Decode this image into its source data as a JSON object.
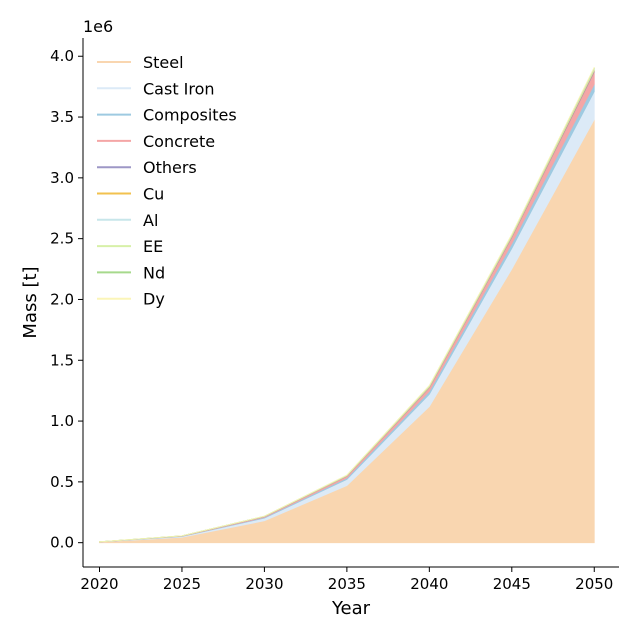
{
  "chart_data": {
    "type": "area",
    "stacked": true,
    "xlabel": "Year",
    "ylabel": "Mass [t]",
    "y_offset_label": "1e6",
    "x": [
      2020,
      2025,
      2030,
      2035,
      2040,
      2045,
      2050
    ],
    "xlim": [
      2019,
      2051.5
    ],
    "ylim": [
      -0.2,
      4.15
    ],
    "y_unit_multiplier": 1000000,
    "x_ticks": [
      2020,
      2025,
      2030,
      2035,
      2040,
      2045,
      2050
    ],
    "y_ticks": [
      0.0,
      0.5,
      1.0,
      1.5,
      2.0,
      2.5,
      3.0,
      3.5,
      4.0
    ],
    "y_tick_labels": [
      "0.0",
      "0.5",
      "1.0",
      "1.5",
      "2.0",
      "2.5",
      "3.0",
      "3.5",
      "4.0"
    ],
    "legend_position": "top-left",
    "grid": false,
    "series": [
      {
        "name": "Steel",
        "color": "#f9d6b0",
        "values": [
          0.005,
          0.045,
          0.18,
          0.47,
          1.12,
          2.25,
          3.48
        ]
      },
      {
        "name": "Cast Iron",
        "color": "#dceaf7",
        "values": [
          0.001,
          0.006,
          0.022,
          0.05,
          0.1,
          0.17,
          0.23
        ]
      },
      {
        "name": "Composites",
        "color": "#9ecae1",
        "values": [
          0.0005,
          0.002,
          0.006,
          0.013,
          0.025,
          0.04,
          0.06
        ]
      },
      {
        "name": "Concrete",
        "color": "#f4a6a6",
        "values": [
          0.0005,
          0.002,
          0.006,
          0.014,
          0.03,
          0.05,
          0.1
        ]
      },
      {
        "name": "Others",
        "color": "#9d97c6",
        "values": [
          0.0001,
          0.0005,
          0.001,
          0.002,
          0.004,
          0.006,
          0.01
        ]
      },
      {
        "name": "Cu",
        "color": "#f2c14e",
        "values": [
          0.0001,
          0.0005,
          0.001,
          0.002,
          0.004,
          0.006,
          0.01
        ]
      },
      {
        "name": "Al",
        "color": "#c7e6ea",
        "values": [
          0.0001,
          0.0005,
          0.001,
          0.002,
          0.004,
          0.006,
          0.008
        ]
      },
      {
        "name": "EE",
        "color": "#d7f0a8",
        "values": [
          0.0001,
          0.0002,
          0.0005,
          0.001,
          0.002,
          0.003,
          0.004
        ]
      },
      {
        "name": "Nd",
        "color": "#a6d98c",
        "values": [
          0.0001,
          0.0002,
          0.0005,
          0.001,
          0.002,
          0.003,
          0.004
        ]
      },
      {
        "name": "Dy",
        "color": "#fbf5b8",
        "values": [
          0.0001,
          0.0002,
          0.0005,
          0.001,
          0.002,
          0.003,
          0.004
        ]
      }
    ]
  }
}
